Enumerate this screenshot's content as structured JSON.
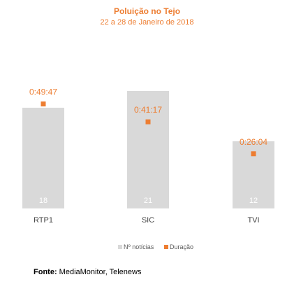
{
  "chart_data": {
    "type": "bar",
    "title": "Poluição no Tejo",
    "subtitle": "22 a 28 de Janeiro de 2018",
    "categories": [
      "RTP1",
      "SIC",
      "TVI"
    ],
    "series": [
      {
        "name": "Nº notícias",
        "type": "bar",
        "values": [
          18,
          21,
          12
        ],
        "color": "#d9d9d9"
      },
      {
        "name": "Duração",
        "type": "scatter",
        "values": [
          2987,
          2477,
          1564
        ],
        "labels": [
          "0:49:47",
          "0:41:17",
          "0:26:04"
        ],
        "color": "#ed7d31"
      }
    ],
    "bar_ylim": [
      0,
      25
    ],
    "duration_ylim": [
      0,
      4000
    ],
    "legend_position": "bottom",
    "grid": false,
    "source_label": "Fonte:",
    "source_text": " MediaMonitor, Telenews"
  },
  "colors": {
    "accent": "#ed7d31",
    "bar": "#d9d9d9",
    "text": "#404040"
  }
}
